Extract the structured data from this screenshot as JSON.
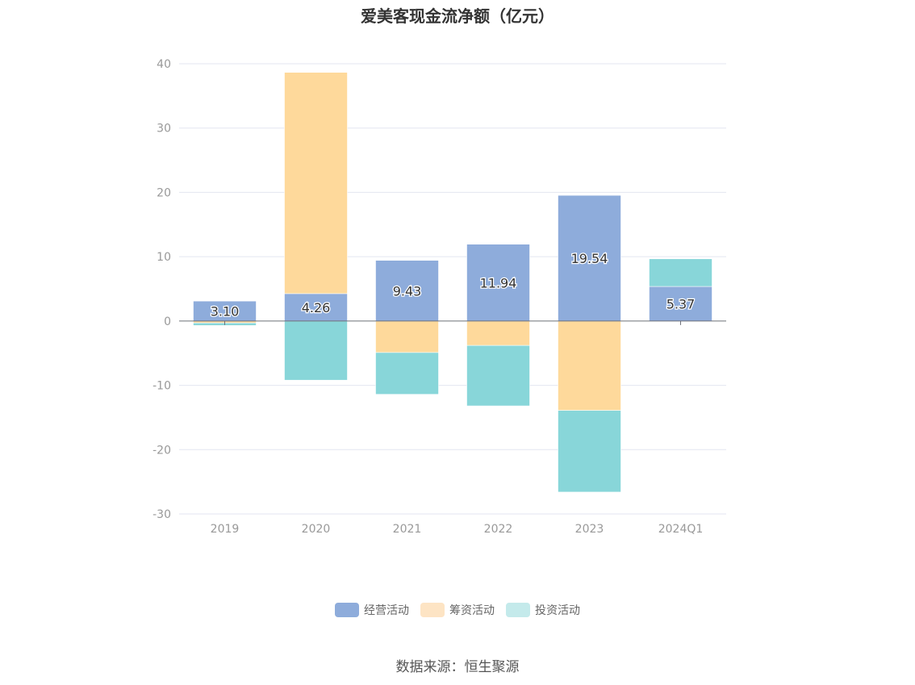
{
  "chart_data": {
    "type": "bar",
    "stacked": true,
    "title": "爱美客现金流净额（亿元）",
    "categories": [
      "2019",
      "2020",
      "2021",
      "2022",
      "2023",
      "2024Q1"
    ],
    "series": [
      {
        "name": "经营活动",
        "color": "#8eacdb",
        "values": [
          3.1,
          4.26,
          9.43,
          11.94,
          19.54,
          5.37
        ]
      },
      {
        "name": "筹资活动",
        "color": "#fed99b",
        "values": [
          -0.3,
          34.4,
          -4.9,
          -3.8,
          -13.9,
          0
        ]
      },
      {
        "name": "投资活动",
        "color": "#88d6d9",
        "values": [
          -0.4,
          -9.2,
          -6.5,
          -9.4,
          -12.7,
          4.3
        ]
      }
    ],
    "data_labels": [
      "3.10",
      "4.26",
      "9.43",
      "11.94",
      "19.54",
      "5.37"
    ],
    "ylim": [
      -30,
      40
    ],
    "yticks": [
      40,
      30,
      20,
      10,
      0,
      -10,
      -20,
      -30
    ],
    "grid": true,
    "legend_position": "bottom"
  },
  "legend": [
    {
      "label": "经营活动",
      "color": "#8eacdb"
    },
    {
      "label": "筹资活动",
      "color": "#fde4c4"
    },
    {
      "label": "投资活动",
      "color": "#c4eaeb"
    }
  ],
  "source": "数据来源：恒生聚源"
}
